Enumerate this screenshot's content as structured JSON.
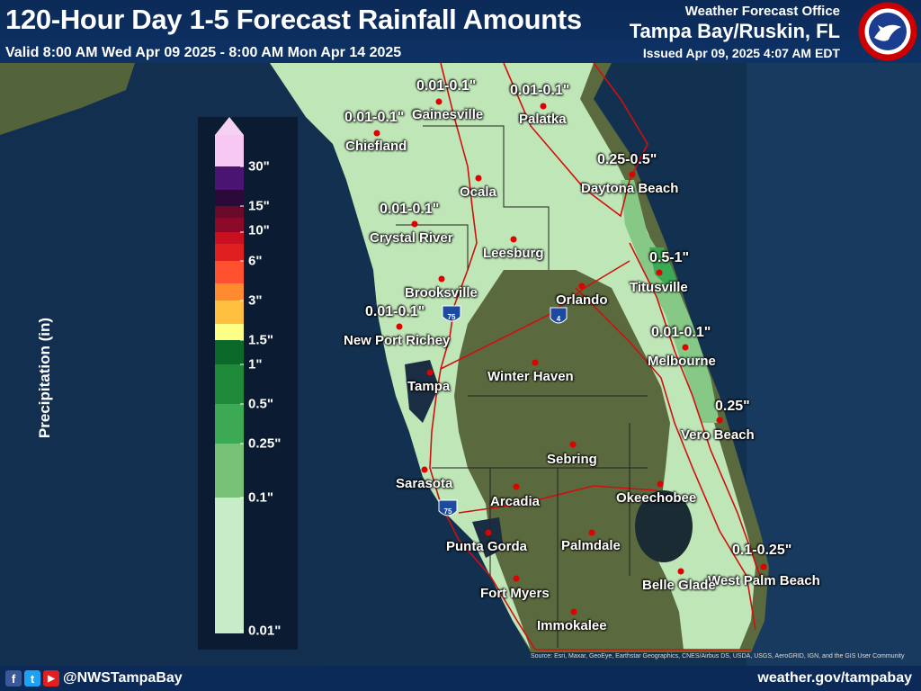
{
  "header": {
    "title": "120-Hour Day 1-5 Forecast Rainfall Amounts",
    "valid": "Valid 8:00 AM Wed Apr 09 2025 - 8:00 AM Mon Apr 14 2025",
    "office_line1": "Weather Forecast Office",
    "office_line2": "Tampa Bay/Ruskin, FL",
    "issued": "Issued Apr 09, 2025 4:07 AM EDT",
    "seal_text": "NATIONAL WEATHER SERVICE"
  },
  "legend": {
    "title": "Precipitation (in)",
    "labels": [
      "30\"",
      "15\"",
      "10\"",
      "6\"",
      "3\"",
      "1.5\"",
      "1\"",
      "0.5\"",
      "0.25\"",
      "0.1\"",
      "0.01\""
    ],
    "colors": {
      "top_arrow": "#f5d2f2",
      "30": "#f8c8f4",
      "20": "#4a1570",
      "15": "#2b0a3a",
      "12": "#6a0a2a",
      "10": "#8b0a2a",
      "8": "#c81020",
      "6": "#e02020",
      "5": "#ff5030",
      "3": "#ff8a30",
      "2": "#ffc040",
      "1.5": "#ffff88",
      "1": "#0b6a2a",
      "0.75": "#1e8a3a",
      "0.5": "#3caa55",
      "0.25": "#78c278",
      "0.1": "#a8d8a0",
      "0.01": "#c8ecc8"
    }
  },
  "cities": [
    {
      "name": "Gainesville"
    },
    {
      "name": "Palatka"
    },
    {
      "name": "Chiefland"
    },
    {
      "name": "Ocala"
    },
    {
      "name": "Daytona Beach"
    },
    {
      "name": "Crystal River"
    },
    {
      "name": "Leesburg"
    },
    {
      "name": "Brooksville"
    },
    {
      "name": "Orlando"
    },
    {
      "name": "Titusville"
    },
    {
      "name": "New Port Richey"
    },
    {
      "name": "Melbourne"
    },
    {
      "name": "Winter Haven"
    },
    {
      "name": "Tampa"
    },
    {
      "name": "Vero Beach"
    },
    {
      "name": "Sebring"
    },
    {
      "name": "Sarasota"
    },
    {
      "name": "Arcadia"
    },
    {
      "name": "Okeechobee"
    },
    {
      "name": "Punta Gorda"
    },
    {
      "name": "Palmdale"
    },
    {
      "name": "West Palm Beach"
    },
    {
      "name": "Fort Myers"
    },
    {
      "name": "Belle Glade"
    },
    {
      "name": "Immokalee"
    }
  ],
  "amounts": [
    {
      "text": "0.01-0.1\""
    },
    {
      "text": "0.01-0.1\""
    },
    {
      "text": "0.01-0.1\""
    },
    {
      "text": "0.25-0.5\""
    },
    {
      "text": "0.01-0.1\""
    },
    {
      "text": "0.5-1\""
    },
    {
      "text": "0.01-0.1\""
    },
    {
      "text": "0.01-0.1\""
    },
    {
      "text": "0.25\""
    },
    {
      "text": "0.1-0.25\""
    }
  ],
  "shields": [
    {
      "label": "75"
    },
    {
      "label": "4"
    },
    {
      "label": "75"
    }
  ],
  "attribution": "Source: Esri, Maxar, GeoEye, Earthstar Geographics, CNES/Airbus DS, USDA, USGS, AeroGRID, IGN, and the GIS User Community",
  "footer": {
    "facebook": "f",
    "twitter": "t",
    "youtube": "▶",
    "handle": "@NWSTampaBay",
    "website": "weather.gov/tampabay"
  },
  "colors": {
    "header_bg": "#0b2a57",
    "city_dot": "#e00000",
    "roads": "#d01010",
    "ocean": "#0d2747"
  }
}
